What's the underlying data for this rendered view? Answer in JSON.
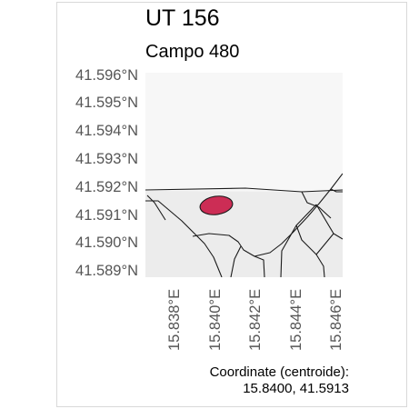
{
  "map": {
    "title": "UT 156",
    "subtitle": "Campo 480",
    "y_ticks": [
      "41.596°N",
      "41.595°N",
      "41.594°N",
      "41.593°N",
      "41.592°N",
      "41.591°N",
      "41.590°N",
      "41.589°N"
    ],
    "x_ticks": [
      "15.838°E",
      "15.840°E",
      "15.842°E",
      "15.844°E",
      "15.846°E"
    ],
    "highlight_color": "#cc2d55",
    "footer_line1": "Coordinate (centroide):",
    "footer_line2": "15.8400, 41.5913"
  }
}
